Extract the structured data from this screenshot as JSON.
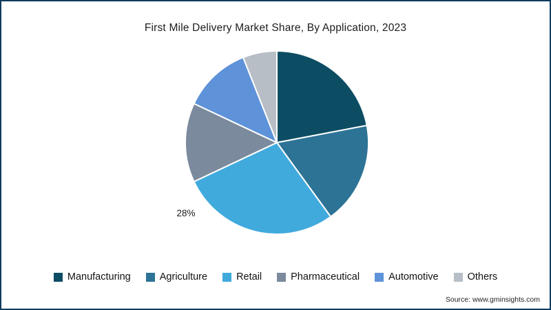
{
  "chart": {
    "title": "First Mile Delivery Market Share, By Application, 2023",
    "visible_label": "28%"
  },
  "chart_data": {
    "type": "pie",
    "title": "First Mile Delivery Market Share, By Application, 2023",
    "labels": [
      "Manufacturing",
      "Agriculture",
      "Retail",
      "Pharmaceutical",
      "Automotive",
      "Others"
    ],
    "values": [
      22,
      18,
      28,
      14,
      12,
      6
    ],
    "colors": [
      "#0d4d63",
      "#2d7396",
      "#41aadd",
      "#7b8a9d",
      "#5e92d9",
      "#b7bec6"
    ],
    "data_labels_shown": {
      "Retail": "28%"
    },
    "start_angle_deg": 0,
    "direction": "clockwise",
    "slice_border_color": "#ffffff",
    "legend_position": "bottom"
  },
  "legend": {
    "items": [
      {
        "label": "Manufacturing",
        "color": "#0d4d63"
      },
      {
        "label": "Agriculture",
        "color": "#2d7396"
      },
      {
        "label": "Retail",
        "color": "#41aadd"
      },
      {
        "label": "Pharmaceutical",
        "color": "#7b8a9d"
      },
      {
        "label": "Automotive",
        "color": "#5e92d9"
      },
      {
        "label": "Others",
        "color": "#b7bec6"
      }
    ]
  },
  "footer": {
    "source": "Source: www.gminsights.com"
  }
}
